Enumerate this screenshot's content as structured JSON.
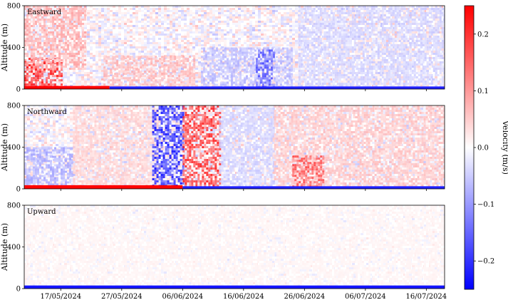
{
  "chart_data": [
    {
      "type": "heatmap",
      "title": "Eastward",
      "ylabel": "Altitude (m)",
      "ylim": [
        0,
        800
      ],
      "yticks": [
        "0",
        "400",
        "800"
      ],
      "x_range": [
        "2024-05-11",
        "2024-07-19"
      ],
      "xticks": [],
      "signal": [
        {
          "x_start": "2024-05-11",
          "x_end": "2024-05-17",
          "alt_min": 20,
          "alt_max": 300,
          "velocity": 0.18
        },
        {
          "x_start": "2024-05-11",
          "x_end": "2024-05-21",
          "alt_min": 200,
          "alt_max": 800,
          "velocity": 0.07
        },
        {
          "x_start": "2024-05-24",
          "x_end": "2024-06-08",
          "alt_min": 20,
          "alt_max": 320,
          "velocity": 0.06
        },
        {
          "x_start": "2024-06-09",
          "x_end": "2024-06-24",
          "alt_min": 20,
          "alt_max": 400,
          "velocity": -0.06
        },
        {
          "x_start": "2024-06-18",
          "x_end": "2024-06-21",
          "alt_min": 20,
          "alt_max": 380,
          "velocity": -0.14
        },
        {
          "x_start": "2024-06-25",
          "x_end": "2024-07-19",
          "alt_min": 20,
          "alt_max": 800,
          "velocity": -0.04
        },
        {
          "x_start": "2024-05-11",
          "x_end": "2024-05-25",
          "alt_min": 0,
          "alt_max": 30,
          "velocity": 0.25
        },
        {
          "x_start": "2024-05-25",
          "x_end": "2024-07-19",
          "alt_min": 0,
          "alt_max": 25,
          "velocity": -0.22
        }
      ]
    },
    {
      "type": "heatmap",
      "title": "Northward",
      "ylabel": "Altitude (m)",
      "ylim": [
        0,
        800
      ],
      "yticks": [
        "0",
        "400",
        "800"
      ],
      "x_range": [
        "2024-05-11",
        "2024-07-19"
      ],
      "xticks": [],
      "signal": [
        {
          "x_start": "2024-05-11",
          "x_end": "2024-05-19",
          "alt_min": 20,
          "alt_max": 400,
          "velocity": -0.07
        },
        {
          "x_start": "2024-05-19",
          "x_end": "2024-06-02",
          "alt_min": 20,
          "alt_max": 800,
          "velocity": 0.04
        },
        {
          "x_start": "2024-06-01",
          "x_end": "2024-06-06",
          "alt_min": 40,
          "alt_max": 800,
          "velocity": -0.18
        },
        {
          "x_start": "2024-06-06",
          "x_end": "2024-06-12",
          "alt_min": 20,
          "alt_max": 800,
          "velocity": 0.17
        },
        {
          "x_start": "2024-06-12",
          "x_end": "2024-06-21",
          "alt_min": 20,
          "alt_max": 800,
          "velocity": -0.04
        },
        {
          "x_start": "2024-06-21",
          "x_end": "2024-07-19",
          "alt_min": 20,
          "alt_max": 800,
          "velocity": 0.05
        },
        {
          "x_start": "2024-06-24",
          "x_end": "2024-06-29",
          "alt_min": 20,
          "alt_max": 320,
          "velocity": 0.14
        },
        {
          "x_start": "2024-05-11",
          "x_end": "2024-06-06",
          "alt_min": 0,
          "alt_max": 35,
          "velocity": 0.25
        },
        {
          "x_start": "2024-06-06",
          "x_end": "2024-07-19",
          "alt_min": 0,
          "alt_max": 25,
          "velocity": -0.22
        }
      ]
    },
    {
      "type": "heatmap",
      "title": "Upward",
      "ylabel": "Altitude (m)",
      "ylim": [
        0,
        800
      ],
      "yticks": [
        "0",
        "400",
        "800"
      ],
      "x_range": [
        "2024-05-11",
        "2024-07-19"
      ],
      "xticks": [
        "17/05/2024",
        "27/05/2024",
        "06/06/2024",
        "16/06/2024",
        "26/06/2024",
        "06/07/2024",
        "16/07/2024"
      ],
      "xtick_dates": [
        "2024-05-17",
        "2024-05-27",
        "2024-06-06",
        "2024-06-16",
        "2024-06-26",
        "2024-07-06",
        "2024-07-16"
      ],
      "signal": [
        {
          "x_start": "2024-05-11",
          "x_end": "2024-07-19",
          "alt_min": 20,
          "alt_max": 800,
          "velocity": 0.01
        },
        {
          "x_start": "2024-05-11",
          "x_end": "2024-07-19",
          "alt_min": 0,
          "alt_max": 30,
          "velocity": -0.23
        }
      ]
    }
  ],
  "colorbar": {
    "label": "Velocity (m/s)",
    "range": [
      -0.25,
      0.25
    ],
    "tick_values": [
      0.2,
      0.1,
      0.0,
      -0.1,
      -0.2
    ],
    "tick_labels": [
      "0.2",
      "0.1",
      "0.0",
      "−0.1",
      "−0.2"
    ],
    "colormap": "bwr",
    "low_color": "#0000ff",
    "mid_color": "#ffffff",
    "high_color": "#ff0000"
  }
}
